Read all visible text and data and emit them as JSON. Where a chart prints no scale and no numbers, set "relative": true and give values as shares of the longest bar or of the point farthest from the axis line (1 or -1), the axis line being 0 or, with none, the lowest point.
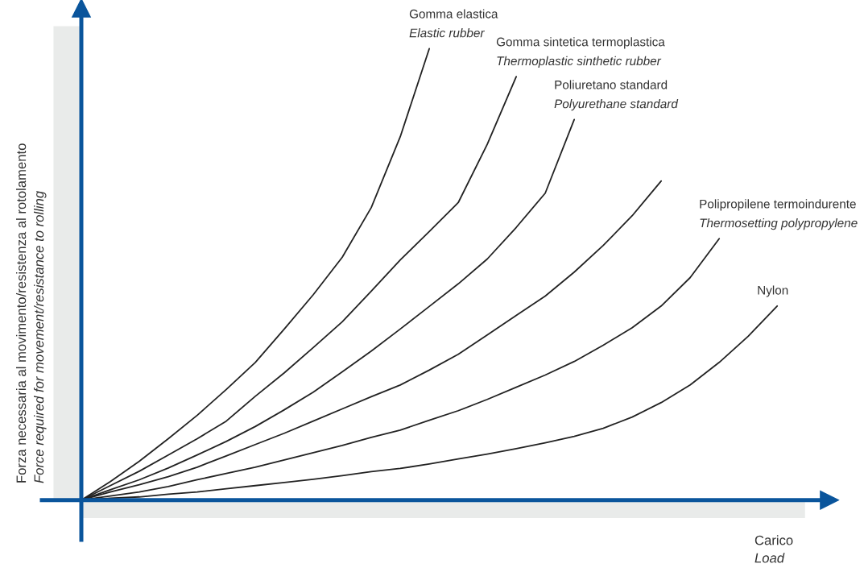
{
  "chart_data": {
    "type": "line",
    "relative": true,
    "legend": false,
    "marker": "none",
    "line_style": "solid",
    "xlabel": "Carico\nLoad",
    "ylabel": "Forza necessaria al movimento/resistenza al rotolamento\nForce required for movement/resistance to rolling",
    "categories": [
      null,
      null,
      null,
      null,
      null,
      null,
      null,
      null,
      null,
      null,
      null,
      null,
      null,
      null,
      null,
      null,
      null,
      null,
      null,
      null,
      null,
      null,
      null,
      null,
      null
    ],
    "series": [
      {
        "name": "Gomma elastica\nElastic rubber",
        "color": "#222222",
        "values": [
          0,
          0.041,
          0.086,
          0.136,
          0.188,
          0.245,
          0.305,
          0.379,
          0.455,
          0.538,
          0.648,
          0.805,
          1.0,
          null,
          null,
          null,
          null,
          null,
          null,
          null,
          null,
          null,
          null,
          null,
          null
        ]
      },
      {
        "name": "Gomma sintetica termoplastica\nThermoplastic sinthetic rubber",
        "color": "#222222",
        "values": [
          0,
          0.032,
          0.064,
          0.1,
          0.136,
          0.175,
          0.23,
          0.282,
          0.338,
          0.395,
          0.463,
          0.532,
          0.595,
          0.659,
          0.788,
          0.938,
          null,
          null,
          null,
          null,
          null,
          null,
          null,
          null,
          null
        ]
      },
      {
        "name": "Poliuretano standard\nPolyurethane standard",
        "color": "#222222",
        "values": [
          0,
          0.023,
          0.045,
          0.071,
          0.1,
          0.13,
          0.163,
          0.2,
          0.239,
          0.284,
          0.33,
          0.379,
          0.429,
          0.479,
          0.534,
          0.604,
          0.68,
          0.843,
          null,
          null,
          null,
          null,
          null,
          null,
          null
        ]
      },
      {
        "color": "#222222",
        "values": [
          0,
          0.018,
          0.034,
          0.052,
          0.073,
          0.098,
          0.123,
          0.148,
          0.175,
          0.202,
          0.229,
          0.255,
          0.288,
          0.323,
          0.366,
          0.409,
          0.452,
          0.505,
          0.564,
          0.63,
          0.707,
          null,
          null,
          null,
          null
        ]
      },
      {
        "name": "Polipropilene termoindurente\nThermosetting polypropylene",
        "color": "#222222",
        "values": [
          0,
          0.009,
          0.018,
          0.03,
          0.045,
          0.059,
          0.073,
          0.089,
          0.105,
          0.121,
          0.139,
          0.155,
          0.177,
          0.198,
          0.223,
          0.25,
          0.277,
          0.307,
          0.343,
          0.382,
          0.43,
          0.493,
          0.579,
          null,
          null
        ]
      },
      {
        "name": "Nylon",
        "color": "#222222",
        "values": [
          0,
          0.004,
          0.007,
          0.013,
          0.018,
          0.025,
          0.032,
          0.039,
          0.046,
          0.054,
          0.063,
          0.07,
          0.08,
          0.091,
          0.102,
          0.114,
          0.127,
          0.141,
          0.159,
          0.184,
          0.216,
          0.255,
          0.305,
          0.363,
          0.43
        ]
      }
    ]
  }
}
